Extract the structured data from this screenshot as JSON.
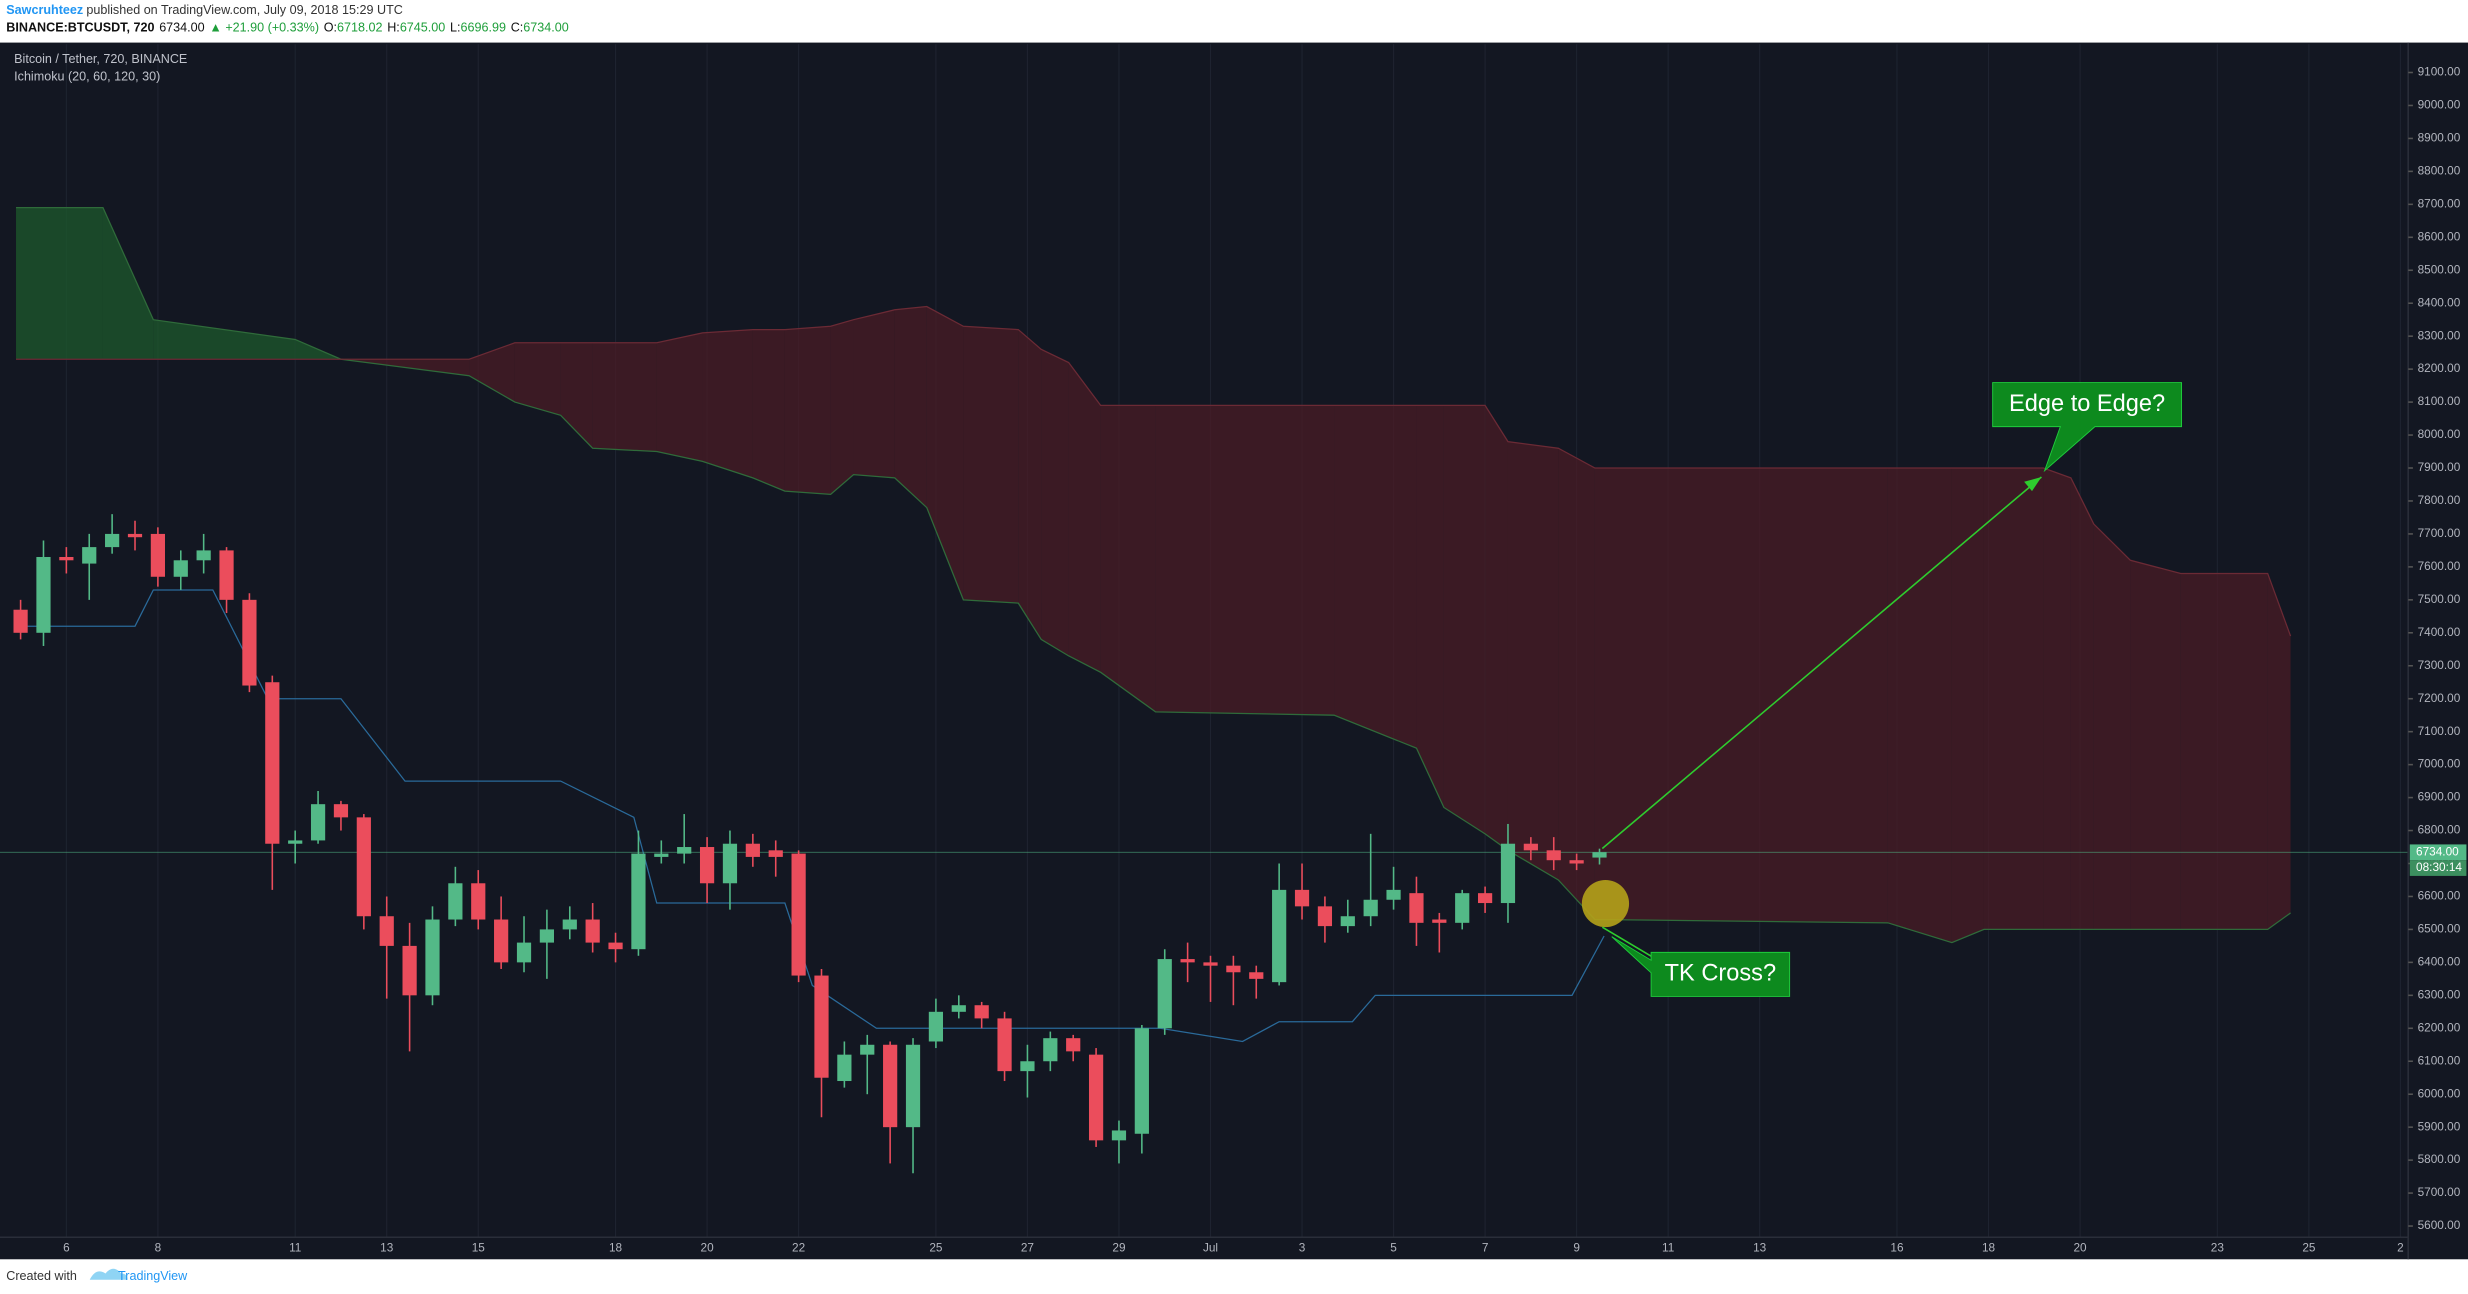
{
  "header": {
    "author": "Sawcruhteez",
    "published": "published on TradingView.com, July 09, 2018 15:29 UTC",
    "symbol": "BINANCE:BTCUSDT, 720",
    "price": "6734.00",
    "change": "▲ +21.90 (+0.33%)",
    "ohlc": [
      {
        "key": "O:",
        "value": "6718.02"
      },
      {
        "key": "H:",
        "value": "6745.00"
      },
      {
        "key": "L:",
        "value": "6696.99"
      },
      {
        "key": "C:",
        "value": "6734.00"
      }
    ]
  },
  "chart_data": {
    "type": "candlestick",
    "legend": [
      "Bitcoin / Tether, 720, BINANCE",
      "Ichimoku (20, 60, 120, 30)"
    ],
    "up_color": "#53b987",
    "down_color": "#eb4d5c",
    "xlim": [
      4.55,
      57.17
    ],
    "ylim": [
      5566,
      9186
    ],
    "xticks": [
      6,
      8,
      11,
      13,
      15,
      18,
      20,
      22,
      25,
      27,
      29,
      {
        "value": 31,
        "label": "Jul"
      },
      {
        "value": 33,
        "label": "3"
      },
      {
        "value": 35,
        "label": "5"
      },
      {
        "value": 37,
        "label": "7"
      },
      {
        "value": 39,
        "label": "9"
      },
      {
        "value": 41,
        "label": "11"
      },
      {
        "value": 43,
        "label": "13"
      },
      {
        "value": 46,
        "label": "16"
      },
      {
        "value": 48,
        "label": "18"
      },
      {
        "value": 50,
        "label": "20"
      },
      {
        "value": 53,
        "label": "23"
      },
      {
        "value": 55,
        "label": "25"
      },
      {
        "value": 57,
        "label": "2"
      }
    ],
    "yticks": [
      {
        "value": 5600,
        "label": "5600.00"
      },
      {
        "value": 5700,
        "label": "5700.00"
      },
      {
        "value": 5800,
        "label": "5800.00"
      },
      {
        "value": 5900,
        "label": "5900.00"
      },
      {
        "value": 6000,
        "label": "6000.00"
      },
      {
        "value": 6100,
        "label": "6100.00"
      },
      {
        "value": 6200,
        "label": "6200.00"
      },
      {
        "value": 6300,
        "label": "6300.00"
      },
      {
        "value": 6400,
        "label": "6400.00"
      },
      {
        "value": 6500,
        "label": "6500.00"
      },
      {
        "value": 6600,
        "label": "6600.00"
      },
      {
        "value": 6700,
        "label": "6700.00"
      },
      {
        "value": 6800,
        "label": "6800.00"
      },
      {
        "value": 6900,
        "label": "6900.00"
      },
      {
        "value": 7000,
        "label": "7000.00"
      },
      {
        "value": 7100,
        "label": "7100.00"
      },
      {
        "value": 7200,
        "label": "7200.00"
      },
      {
        "value": 7300,
        "label": "7300.00"
      },
      {
        "value": 7400,
        "label": "7400.00"
      },
      {
        "value": 7500,
        "label": "7500.00"
      },
      {
        "value": 7600,
        "label": "7600.00"
      },
      {
        "value": 7700,
        "label": "7700.00"
      },
      {
        "value": 7800,
        "label": "7800.00"
      },
      {
        "value": 7900,
        "label": "7900.00"
      },
      {
        "value": 8000,
        "label": "8000.00"
      },
      {
        "value": 8100,
        "label": "8100.00"
      },
      {
        "value": 8200,
        "label": "8200.00"
      },
      {
        "value": 8300,
        "label": "8300.00"
      },
      {
        "value": 8400,
        "label": "8400.00"
      },
      {
        "value": 8500,
        "label": "8500.00"
      },
      {
        "value": 8600,
        "label": "8600.00"
      },
      {
        "value": 8700,
        "label": "8700.00"
      },
      {
        "value": 8800,
        "label": "8800.00"
      },
      {
        "value": 8900,
        "label": "8900.00"
      },
      {
        "value": 9000,
        "label": "9000.00"
      },
      {
        "value": 9100,
        "label": "9100.00"
      }
    ],
    "grid": true,
    "candles": {
      "x": [
        5,
        5.5,
        6,
        6.5,
        7,
        7.5,
        8,
        8.5,
        9,
        9.5,
        10,
        10.5,
        11,
        11.5,
        12,
        12.5,
        13,
        13.5,
        14,
        14.5,
        15,
        15.5,
        16,
        16.5,
        17,
        17.5,
        18,
        18.5,
        19,
        19.5,
        20,
        20.5,
        21,
        21.5,
        22,
        22.5,
        23,
        23.5,
        24,
        24.5,
        25,
        25.5,
        26,
        26.5,
        27,
        27.5,
        28,
        28.5,
        29,
        29.5,
        30,
        30.5,
        31,
        31.5,
        32,
        32.5,
        33,
        33.5,
        34,
        34.5,
        35,
        35.5,
        36,
        36.5,
        37,
        37.5,
        38,
        38.5,
        39,
        39.5
      ],
      "open": [
        7470,
        7400,
        7630,
        7610,
        7660,
        7700,
        7700,
        7570,
        7620,
        7650,
        7500,
        7250,
        6760,
        6770,
        6880,
        6840,
        6540,
        6450,
        6300,
        6530,
        6640,
        6530,
        6400,
        6460,
        6500,
        6530,
        6460,
        6440,
        6720,
        6730,
        6750,
        6640,
        6760,
        6740,
        6730,
        6360,
        6040,
        6120,
        6150,
        5900,
        6160,
        6250,
        6270,
        6230,
        6070,
        6100,
        6170,
        6120,
        5860,
        5880,
        6200,
        6410,
        6400,
        6390,
        6370,
        6340,
        6620,
        6570,
        6510,
        6540,
        6590,
        6610,
        6530,
        6520,
        6610,
        6580,
        6760,
        6740,
        6710,
        6718.02
      ],
      "high": [
        7500,
        7680,
        7660,
        7700,
        7760,
        7740,
        7720,
        7650,
        7700,
        7660,
        7520,
        7270,
        6800,
        6920,
        6890,
        6850,
        6600,
        6520,
        6570,
        6690,
        6680,
        6600,
        6540,
        6560,
        6570,
        6580,
        6490,
        6800,
        6770,
        6850,
        6780,
        6800,
        6790,
        6770,
        6740,
        6380,
        6160,
        6180,
        6160,
        6170,
        6290,
        6300,
        6280,
        6250,
        6150,
        6190,
        6180,
        6140,
        5920,
        6210,
        6440,
        6460,
        6420,
        6420,
        6390,
        6700,
        6700,
        6600,
        6590,
        6790,
        6690,
        6660,
        6550,
        6620,
        6630,
        6820,
        6780,
        6780,
        6730,
        6745
      ],
      "low": [
        7380,
        7360,
        7580,
        7500,
        7640,
        7650,
        7540,
        7530,
        7580,
        7460,
        7220,
        6620,
        6700,
        6760,
        6800,
        6500,
        6290,
        6130,
        6270,
        6510,
        6500,
        6380,
        6370,
        6350,
        6470,
        6430,
        6400,
        6420,
        6700,
        6700,
        6580,
        6560,
        6690,
        6660,
        6340,
        5930,
        6020,
        6000,
        5790,
        5760,
        6140,
        6230,
        6200,
        6040,
        5990,
        6070,
        6100,
        5840,
        5790,
        5820,
        6180,
        6340,
        6280,
        6270,
        6290,
        6330,
        6530,
        6460,
        6490,
        6510,
        6560,
        6450,
        6430,
        6500,
        6550,
        6520,
        6710,
        6680,
        6680,
        6696.99
      ],
      "close": [
        7400,
        7630,
        7620,
        7660,
        7700,
        7690,
        7570,
        7620,
        7650,
        7500,
        7240,
        6760,
        6770,
        6880,
        6840,
        6540,
        6450,
        6300,
        6530,
        6640,
        6530,
        6400,
        6460,
        6500,
        6530,
        6460,
        6440,
        6730,
        6730,
        6750,
        6640,
        6760,
        6720,
        6720,
        6360,
        6050,
        6120,
        6150,
        5900,
        6150,
        6250,
        6270,
        6230,
        6070,
        6100,
        6170,
        6130,
        5860,
        5890,
        6200,
        6410,
        6400,
        6390,
        6370,
        6350,
        6620,
        6570,
        6510,
        6540,
        6590,
        6620,
        6520,
        6520,
        6610,
        6580,
        6760,
        6740,
        6710,
        6700,
        6734
      ]
    },
    "cloud": {
      "x": [
        4.9,
        6.8,
        7.9,
        11.0,
        12.0,
        14.8,
        15.8,
        16.8,
        17.5,
        18.9,
        19.9,
        21.0,
        21.7,
        22.7,
        23.2,
        24.1,
        24.8,
        25.6,
        26.8,
        27.3,
        27.9,
        28.6,
        29.8,
        33.7,
        35.5,
        36.1,
        37.0,
        37.5,
        38.6,
        39.4,
        45.8,
        47.2,
        47.9,
        49.2,
        49.8,
        50.3,
        51.1,
        52.2,
        54.1,
        54.6
      ],
      "span_a": [
        8690,
        8690,
        8350,
        8290,
        8230,
        8180,
        8100,
        8060,
        7960,
        7950,
        7920,
        7870,
        7830,
        7820,
        7880,
        7870,
        7780,
        7500,
        7490,
        7380,
        7330,
        7280,
        7160,
        7150,
        7050,
        6870,
        6790,
        6740,
        6650,
        6530,
        6520,
        6460,
        6500,
        6500,
        6500,
        6500,
        6500,
        6500,
        6500,
        6550
      ],
      "span_b": [
        8230,
        8230,
        8230,
        8230,
        8230,
        8230,
        8280,
        8280,
        8280,
        8280,
        8310,
        8320,
        8320,
        8330,
        8350,
        8380,
        8390,
        8330,
        8320,
        8260,
        8220,
        8090,
        8090,
        8090,
        8090,
        8090,
        8090,
        7980,
        7960,
        7900,
        7900,
        7900,
        7900,
        7900,
        7870,
        7730,
        7620,
        7580,
        7580,
        7390
      ],
      "up_fill": "#1e5a2c",
      "down_fill": "#4a1c26"
    },
    "kijun": {
      "color": "#2a6a9a",
      "x": [
        4.9,
        7.5,
        7.9,
        9.2,
        10.4,
        12.0,
        13.4,
        16.8,
        18.4,
        18.9,
        21.7,
        22.3,
        23.7,
        29.9,
        31.7,
        32.5,
        34.1,
        34.6,
        38.9,
        39.6
      ],
      "values": [
        7420,
        7420,
        7530,
        7530,
        7200,
        7200,
        6950,
        6950,
        6840,
        6580,
        6580,
        6330,
        6200,
        6200,
        6160,
        6220,
        6220,
        6300,
        6300,
        6480
      ]
    },
    "last_price_label": "6734.00",
    "countdown": "08:30:14",
    "annotations": [
      "Edge to Edge?",
      "TK Cross?"
    ]
  },
  "footer": {
    "created": "Created with",
    "brand": "TradingView"
  }
}
